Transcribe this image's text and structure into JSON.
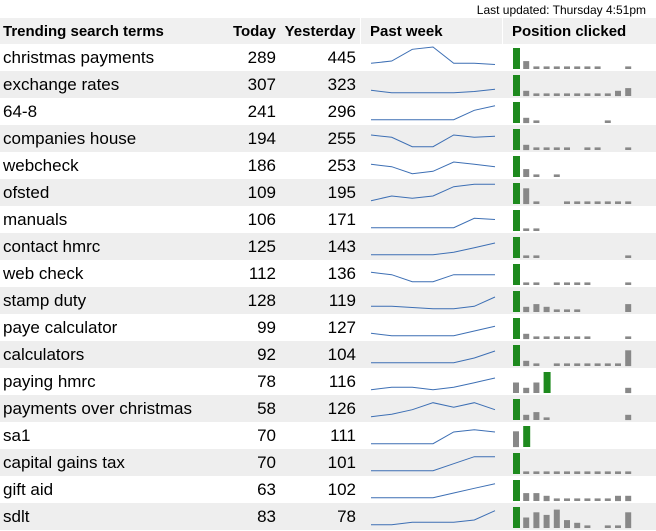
{
  "last_updated": "Last updated: Thursday 4:51pm",
  "headers": {
    "term": "Trending search terms",
    "today": "Today",
    "yesterday": "Yesterday",
    "week": "Past week",
    "position": "Position clicked"
  },
  "colors": {
    "sparkline": "#3d6fb4",
    "top_bar": "#1e8a1e",
    "other_bar": "#888888",
    "alt_row": "#eeeeee"
  },
  "rows": [
    {
      "term": "christmas payments",
      "today": "289",
      "yesterday": "445",
      "week": [
        2,
        3,
        8,
        9,
        2,
        2,
        1.5
      ],
      "positions": [
        8,
        3,
        1,
        1,
        1,
        1,
        1,
        1,
        1,
        0,
        0,
        1
      ]
    },
    {
      "term": "exchange rates",
      "today": "307",
      "yesterday": "323",
      "week": [
        2,
        1,
        1,
        1,
        1,
        1.5,
        2.5
      ],
      "positions": [
        8,
        2,
        1,
        1,
        1,
        1,
        1,
        1,
        1,
        1,
        2,
        3
      ]
    },
    {
      "term": "64-8",
      "today": "241",
      "yesterday": "296",
      "week": [
        1,
        1,
        1,
        1,
        1,
        5,
        7
      ],
      "positions": [
        8,
        2,
        1,
        0,
        0,
        0,
        0,
        0,
        0,
        1,
        0,
        0
      ]
    },
    {
      "term": "companies house",
      "today": "194",
      "yesterday": "255",
      "week": [
        6,
        5,
        1,
        1,
        6,
        5,
        5.5
      ],
      "positions": [
        8,
        2,
        1,
        1,
        1,
        1,
        0,
        1,
        1,
        0,
        0,
        1
      ]
    },
    {
      "term": "webcheck",
      "today": "186",
      "yesterday": "253",
      "week": [
        5,
        4,
        1,
        2,
        6,
        5,
        4
      ],
      "positions": [
        8,
        3,
        1,
        0,
        1,
        0,
        0,
        0,
        0,
        0,
        0,
        0
      ]
    },
    {
      "term": "ofsted",
      "today": "109",
      "yesterday": "195",
      "week": [
        1,
        3,
        2,
        3,
        7,
        8,
        8
      ],
      "positions": [
        8,
        6,
        1,
        0,
        0,
        1,
        1,
        1,
        1,
        1,
        1,
        1
      ]
    },
    {
      "term": "manuals",
      "today": "106",
      "yesterday": "171",
      "week": [
        1,
        1,
        1,
        1,
        1,
        5,
        4.5
      ],
      "positions": [
        8,
        1,
        1,
        0,
        0,
        0,
        0,
        0,
        0,
        0,
        0,
        0
      ]
    },
    {
      "term": "contact hmrc",
      "today": "125",
      "yesterday": "143",
      "week": [
        1,
        1,
        1,
        1,
        2,
        4,
        6
      ],
      "positions": [
        8,
        1,
        1,
        0,
        0,
        0,
        0,
        0,
        0,
        0,
        0,
        1
      ]
    },
    {
      "term": "web check",
      "today": "112",
      "yesterday": "136",
      "week": [
        5,
        4,
        1,
        1,
        4,
        4,
        4
      ],
      "positions": [
        8,
        1,
        1,
        0,
        1,
        1,
        1,
        1,
        0,
        0,
        0,
        1
      ]
    },
    {
      "term": "stamp duty",
      "today": "128",
      "yesterday": "119",
      "week": [
        2,
        2,
        1.5,
        1,
        1,
        2,
        6
      ],
      "positions": [
        8,
        2,
        3,
        2,
        1,
        1,
        1,
        0,
        0,
        0,
        0,
        3
      ]
    },
    {
      "term": "paye calculator",
      "today": "99",
      "yesterday": "127",
      "week": [
        2,
        1,
        1,
        1,
        1,
        3,
        5
      ],
      "positions": [
        8,
        2,
        1,
        1,
        1,
        1,
        1,
        1,
        0,
        0,
        0,
        1
      ]
    },
    {
      "term": "calculators",
      "today": "92",
      "yesterday": "104",
      "week": [
        1,
        1,
        1,
        1,
        1,
        3,
        6
      ],
      "positions": [
        8,
        2,
        1,
        0,
        1,
        1,
        1,
        1,
        1,
        1,
        1,
        6
      ]
    },
    {
      "term": "paying hmrc",
      "today": "78",
      "yesterday": "116",
      "week": [
        1,
        2,
        2,
        1,
        2,
        4,
        6
      ],
      "positions": [
        4,
        2,
        4,
        8,
        0,
        0,
        0,
        0,
        0,
        0,
        0,
        2
      ]
    },
    {
      "term": "payments over christmas",
      "today": "58",
      "yesterday": "126",
      "week": [
        1,
        2,
        4,
        7,
        5,
        7,
        4
      ],
      "positions": [
        8,
        2,
        3,
        1,
        0,
        0,
        0,
        0,
        0,
        0,
        0,
        2
      ]
    },
    {
      "term": "sa1",
      "today": "70",
      "yesterday": "111",
      "week": [
        1,
        1,
        1,
        1,
        6,
        7,
        6
      ],
      "positions": [
        6,
        8,
        0,
        0,
        0,
        0,
        0,
        0,
        0,
        0,
        0,
        0
      ]
    },
    {
      "term": "capital gains tax",
      "today": "70",
      "yesterday": "101",
      "week": [
        1,
        1,
        1,
        1,
        4,
        7,
        7
      ],
      "positions": [
        8,
        1,
        1,
        1,
        1,
        1,
        1,
        1,
        1,
        1,
        1,
        1
      ]
    },
    {
      "term": "gift aid",
      "today": "63",
      "yesterday": "102",
      "week": [
        1,
        1,
        1,
        1,
        3,
        5,
        7
      ],
      "positions": [
        8,
        3,
        3,
        2,
        1,
        1,
        1,
        1,
        1,
        1,
        2,
        2
      ]
    },
    {
      "term": "sdlt",
      "today": "83",
      "yesterday": "78",
      "week": [
        1,
        1,
        2,
        2,
        2,
        3,
        7
      ],
      "positions": [
        8,
        4,
        6,
        5,
        7,
        3,
        2,
        1,
        0,
        1,
        1,
        6
      ]
    }
  ]
}
